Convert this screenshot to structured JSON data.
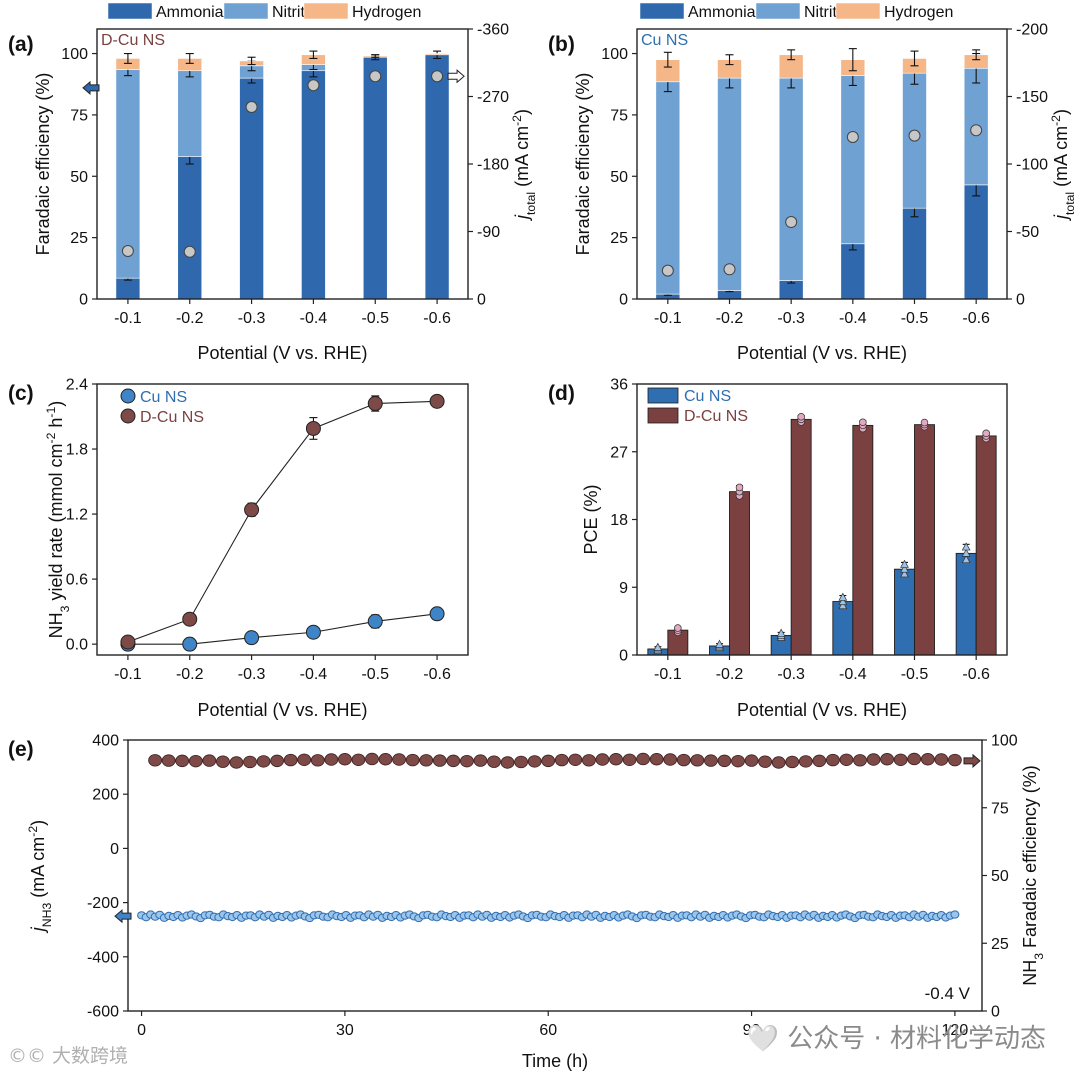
{
  "colors": {
    "ammonia": "#2f68ac",
    "nitrite": "#6fa1d3",
    "hydrogen": "#f5b788",
    "cu": "#2f6eb0",
    "dcu": "#7a4140",
    "cu_point": "#3e84c6",
    "dcu_point": "#7d4a48",
    "marker_grey": "#c7c7c7",
    "bar_outline": "#1f1f1f"
  },
  "watermark": {
    "right": "🤍 公众号 · 材料化学动态",
    "left": "©© 大数跨境"
  },
  "chart_data": [
    {
      "panel": "(a)",
      "type": "bar",
      "stacked": true,
      "inner_label": "D-Cu NS",
      "categories": [
        "-0.1",
        "-0.2",
        "-0.3",
        "-0.4",
        "-0.5",
        "-0.6"
      ],
      "legend": [
        "Ammonia",
        "Nitrite",
        "Hydrogen"
      ],
      "legend_position": "top",
      "series": [
        {
          "name": "Ammonia",
          "values": [
            8.5,
            58,
            90,
            93,
            98.5,
            99.5
          ],
          "errors": [
            0.8,
            3,
            2,
            2.5,
            1,
            1.5
          ]
        },
        {
          "name": "Nitrite",
          "values": [
            85,
            35,
            5,
            2.5,
            0,
            0
          ],
          "errors": [
            2.5,
            2.5,
            2,
            2,
            0,
            0
          ]
        },
        {
          "name": "Hydrogen",
          "values": [
            4.5,
            5,
            2,
            4,
            0.5,
            0.5
          ],
          "errors": [
            2,
            2,
            1.5,
            1.5,
            0.5,
            0
          ]
        }
      ],
      "j_total": [
        -64,
        -63,
        -256,
        -285,
        -297,
        -297
      ],
      "j_arrow_point": -297,
      "xlabel": "Potential (V vs. RHE)",
      "ylabel": "Faradaic efficiency (%)",
      "y2label": "jtotal (mA cm-2)",
      "y2label_main": "j",
      "y2label_sub": "total",
      "y2label_unit": " (mA cm",
      "y2label_sup": "-2",
      "y2label_end": ")",
      "ylim": [
        0,
        110
      ],
      "yticks": [
        "0",
        "25",
        "50",
        "75",
        "100"
      ],
      "y2lim": [
        0,
        -360
      ],
      "y2ticks": [
        "0",
        "-90",
        "-180",
        "-270",
        "-360"
      ]
    },
    {
      "panel": "(b)",
      "type": "bar",
      "stacked": true,
      "inner_label": "Cu NS",
      "categories": [
        "-0.1",
        "-0.2",
        "-0.3",
        "-0.4",
        "-0.5",
        "-0.6"
      ],
      "legend": [
        "Ammonia",
        "Nitrite",
        "Hydrogen"
      ],
      "legend_position": "top",
      "series": [
        {
          "name": "Ammonia",
          "values": [
            2,
            3.5,
            7.5,
            22.5,
            37,
            46.5
          ],
          "errors": [
            0.5,
            0.5,
            1,
            2.5,
            3.5,
            4.5
          ]
        },
        {
          "name": "Nitrite",
          "values": [
            86.5,
            86.5,
            82.5,
            68.5,
            55,
            47.5
          ],
          "errors": [
            4,
            4,
            4,
            4,
            4.5,
            6
          ]
        },
        {
          "name": "Hydrogen",
          "values": [
            9,
            7.5,
            9.5,
            6.5,
            6,
            5.5
          ],
          "errors": [
            3,
            2,
            2,
            4.5,
            3,
            2
          ]
        }
      ],
      "j_total": [
        -21,
        -22,
        -57,
        -120,
        -121,
        -125
      ],
      "j_arrow_point": null,
      "xlabel": "Potential (V vs. RHE)",
      "ylabel": "Faradaic efficiency (%)",
      "y2label": "jtotal (mA cm-2)",
      "y2label_main": "j",
      "y2label_sub": "total",
      "y2label_unit": " (mA cm",
      "y2label_sup": "-2",
      "y2label_end": ")",
      "ylim": [
        0,
        110
      ],
      "yticks": [
        "0",
        "25",
        "50",
        "75",
        "100"
      ],
      "y2lim": [
        0,
        -200
      ],
      "y2ticks": [
        "0",
        "-50",
        "-100",
        "-150",
        "-200"
      ]
    },
    {
      "panel": "(c)",
      "type": "line",
      "categories": [
        "-0.1",
        "-0.2",
        "-0.3",
        "-0.4",
        "-0.5",
        "-0.6"
      ],
      "series": [
        {
          "name": "Cu NS",
          "values": [
            0.0,
            0.0,
            0.06,
            0.11,
            0.21,
            0.28
          ],
          "errors": [
            0.01,
            0.01,
            0.02,
            0.02,
            0.06,
            0.05
          ]
        },
        {
          "name": "D-Cu NS",
          "values": [
            0.02,
            0.23,
            1.24,
            1.99,
            2.22,
            2.24
          ],
          "errors": [
            0.01,
            0.02,
            0.06,
            0.1,
            0.07,
            0.05
          ]
        }
      ],
      "legend_position": "top-left",
      "xlabel": "Potential (V vs. RHE)",
      "ylabel": "NH3 yield rate (mmol cm-2 h-1)",
      "ylabel_parts": {
        "a": "NH",
        "sub": "3",
        "b": " yield rate (mmol cm",
        "sup1": "-2",
        "c": " h",
        "sup2": "-1",
        "d": ")"
      },
      "ylim": [
        -0.1,
        2.4
      ],
      "yticks": [
        "0.0",
        "0.6",
        "1.2",
        "1.8",
        "2.4"
      ]
    },
    {
      "panel": "(d)",
      "type": "bar",
      "categories": [
        "-0.1",
        "-0.2",
        "-0.3",
        "-0.4",
        "-0.5",
        "-0.6"
      ],
      "series": [
        {
          "name": "Cu NS",
          "values": [
            0.8,
            1.2,
            2.6,
            7.1,
            11.4,
            13.5
          ],
          "errors": [
            0.3,
            0.3,
            0.4,
            0.8,
            0.9,
            1.2
          ]
        },
        {
          "name": "D-Cu NS",
          "values": [
            3.3,
            21.7,
            31.3,
            30.5,
            30.6,
            29.1
          ],
          "errors": [
            0.4,
            0.8,
            0.5,
            0.6,
            0.4,
            0.5
          ]
        }
      ],
      "legend_position": "top-left",
      "xlabel": "Potential (V vs. RHE)",
      "ylabel": "PCE (%)",
      "ylim": [
        0,
        36
      ],
      "yticks": [
        "0",
        "9",
        "18",
        "27",
        "36"
      ]
    },
    {
      "panel": "(e)",
      "type": "scatter",
      "annotation": "-0.4 V",
      "xlabel": "Time (h)",
      "xlim": [
        -2,
        124
      ],
      "xticks": [
        "0",
        "30",
        "60",
        "90",
        "120"
      ],
      "ylabel": "jNH3 (mA cm-2)",
      "ylabel_parts": {
        "a": "j",
        "sub": "NH3",
        "b": " (mA cm",
        "sup": "-2",
        "c": ")"
      },
      "ylim": [
        -600,
        400
      ],
      "yticks": [
        "-600",
        "-400",
        "-200",
        "0",
        "200",
        "400"
      ],
      "y2label": "NH3 Faradaic efficiency (%)",
      "y2label_parts": {
        "a": "NH",
        "sub": "3",
        "b": " Faradaic efficiency (%)"
      },
      "y2lim": [
        0,
        100
      ],
      "y2ticks": [
        "0",
        "25",
        "50",
        "75",
        "100"
      ],
      "series": [
        {
          "name": "NH3 Faradaic efficiency",
          "axis": "right",
          "x_start": 2,
          "x_end": 120,
          "count": 60,
          "mean": 92.3,
          "pattern": [
            0.2,
            0.1,
            0.0,
            -0.1,
            0.1,
            -0.3,
            -0.6,
            -0.4,
            -0.2,
            0.0,
            0.3,
            0.4,
            0.2,
            0.5,
            0.6,
            0.4,
            0.7,
            0.6,
            0.5,
            0.3
          ]
        },
        {
          "name": "jNH3",
          "axis": "left",
          "x_start": 0,
          "x_end": 120,
          "count": 180,
          "mean": -250,
          "pattern": [
            3,
            -4,
            6,
            -2,
            5,
            -6,
            1,
            -3,
            4,
            -5,
            2,
            6,
            -1,
            -7,
            3,
            5,
            -2,
            -4,
            6,
            0,
            -3,
            4,
            -6,
            2
          ]
        }
      ]
    }
  ]
}
